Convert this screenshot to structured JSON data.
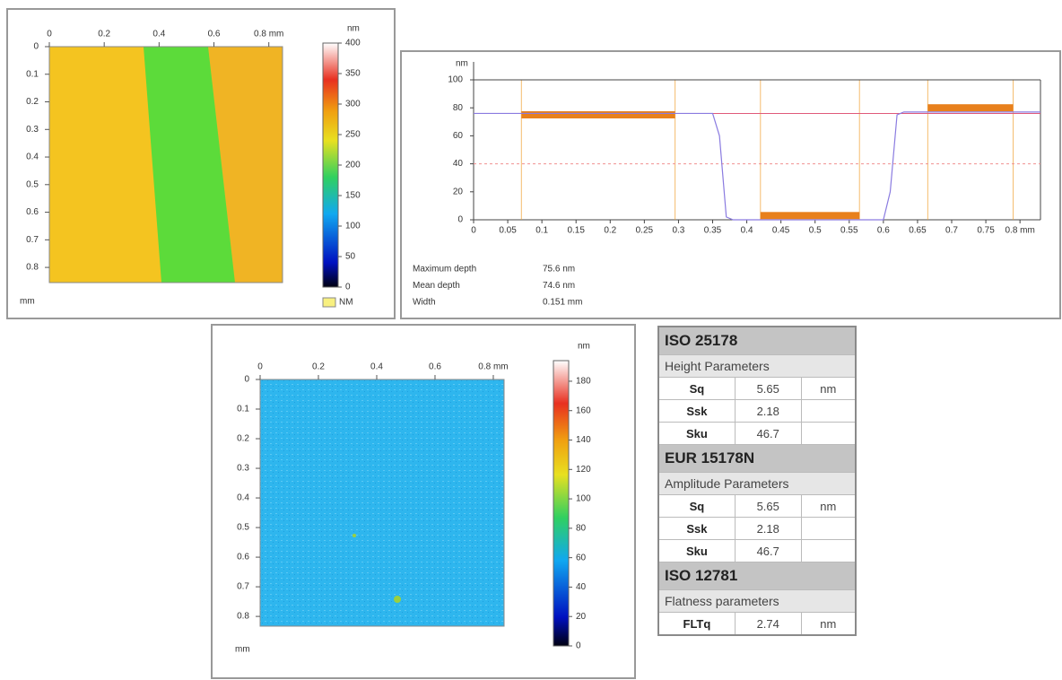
{
  "chart_data": [
    {
      "type": "heatmap",
      "xlim": [
        0,
        0.85
      ],
      "xticks": [
        0,
        0.2,
        0.4,
        0.6,
        {
          "value": 0.8,
          "label": "0.8 mm"
        }
      ],
      "ylim": [
        0,
        0.855
      ],
      "yticks": [
        0,
        0.1,
        0.2,
        0.3,
        0.4,
        0.5,
        0.6,
        0.7,
        0.8
      ],
      "y_unit": "mm",
      "colorbar": {
        "unit": "nm",
        "lim": [
          0,
          400
        ],
        "ticks": [
          0,
          50,
          100,
          150,
          200,
          250,
          300,
          350,
          400
        ]
      },
      "legend": "NM"
    },
    {
      "type": "line",
      "y_unit": "nm",
      "xlim": [
        0,
        0.83
      ],
      "xticks": [
        0,
        0.05,
        0.1,
        0.15,
        0.2,
        0.25,
        0.3,
        0.35,
        0.4,
        0.45,
        0.5,
        0.55,
        0.6,
        0.65,
        0.7,
        0.75,
        {
          "value": 0.8,
          "label": "0.8 mm"
        }
      ],
      "ylim": [
        0,
        100
      ],
      "yticks": [
        0,
        20,
        40,
        60,
        80,
        100
      ],
      "series": [
        {
          "color": "#8a7be0",
          "x": [
            0,
            0.35,
            0.36,
            0.37,
            0.38,
            0.6,
            0.61,
            0.62,
            0.63,
            0.83
          ],
          "values": [
            76,
            76,
            60,
            2,
            0,
            0,
            20,
            75,
            77,
            77
          ]
        }
      ],
      "reference_lines": [
        {
          "value": 76,
          "color": "#e05a7a",
          "dashed": false
        },
        {
          "value": 40,
          "color": "#f09090",
          "dashed": true
        },
        {
          "value": 100,
          "color": "#444444",
          "dashed": false
        }
      ],
      "segments": [
        {
          "x": [
            0.07,
            0.295
          ],
          "y": 75
        },
        {
          "x": [
            0.42,
            0.565
          ],
          "y": 3
        },
        {
          "x": [
            0.665,
            0.79
          ],
          "y": 80
        }
      ],
      "segment_color": "#e8801c",
      "cursors": [
        0.07,
        0.295,
        0.42,
        0.565,
        0.665,
        0.79
      ],
      "annotations": [
        [
          "Maximum depth",
          "75.6 nm"
        ],
        [
          "Mean depth",
          "74.6 nm"
        ],
        [
          "Width",
          "0.151 mm"
        ]
      ]
    },
    {
      "type": "heatmap",
      "xlim": [
        0,
        0.837
      ],
      "xticks": [
        0,
        0.2,
        0.4,
        0.6,
        {
          "value": 0.8,
          "label": "0.8 mm"
        }
      ],
      "ylim": [
        0,
        0.833
      ],
      "yticks": [
        0,
        0.1,
        0.2,
        0.3,
        0.4,
        0.5,
        0.6,
        0.7,
        0.8
      ],
      "y_unit": "mm",
      "colorbar": {
        "unit": "nm",
        "lim": [
          0,
          194
        ],
        "ticks": [
          0,
          20,
          40,
          60,
          80,
          100,
          120,
          140,
          160,
          180
        ]
      }
    }
  ],
  "table": {
    "sections": [
      {
        "title": "ISO 25178",
        "subtitle": "Height Parameters",
        "rows": [
          [
            "Sq",
            "5.65",
            "nm"
          ],
          [
            "Ssk",
            "2.18"
          ],
          [
            "Sku",
            "46.7"
          ]
        ]
      },
      {
        "title": "EUR 15178N",
        "subtitle": "Amplitude Parameters",
        "rows": [
          [
            "Sq",
            "5.65",
            "nm"
          ],
          [
            "Ssk",
            "2.18"
          ],
          [
            "Sku",
            "46.7"
          ]
        ]
      },
      {
        "title": "ISO 12781",
        "subtitle": "Flatness parameters",
        "rows": [
          [
            "FLTq",
            "2.74",
            "nm"
          ]
        ]
      }
    ]
  }
}
